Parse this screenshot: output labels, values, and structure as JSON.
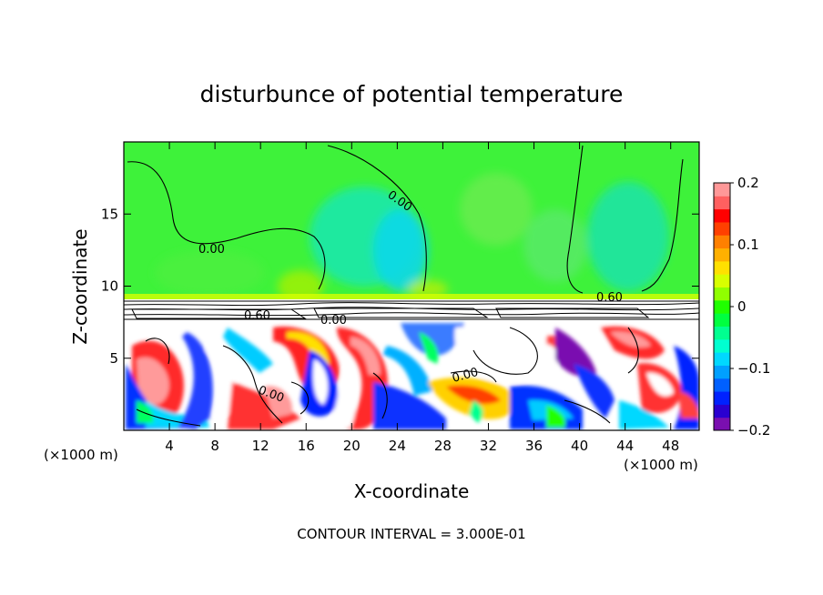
{
  "chart_data": {
    "type": "heatmap",
    "title": "disturbunce of potential temperature",
    "xlabel": "X-coordinate",
    "ylabel": "Z-coordinate",
    "x_unit_label": "(×1000 m)",
    "z_unit_label": "(×1000 m)",
    "xlim": [
      0,
      50.5
    ],
    "ylim": [
      0,
      20
    ],
    "x_ticks": [
      4,
      8,
      12,
      16,
      20,
      24,
      28,
      32,
      36,
      40,
      44,
      48
    ],
    "y_ticks": [
      5,
      10,
      15
    ],
    "colorbar": {
      "min": -0.2,
      "max": 0.2,
      "ticks": [
        "0.2",
        "0.1",
        "0",
        "−0.1",
        "−0.2"
      ],
      "colors": [
        "#7a0fb0",
        "#2a00d0",
        "#0022ff",
        "#0060ff",
        "#00a0ff",
        "#00d8ff",
        "#00ffd0",
        "#00ff90",
        "#00ff40",
        "#20ff00",
        "#90ff00",
        "#d8ff00",
        "#ffe000",
        "#ffb000",
        "#ff8000",
        "#ff4000",
        "#ff0000",
        "#ff6060",
        "#ff9898"
      ]
    },
    "contour_labels": [
      "0.00",
      "0.00",
      "0.60",
      "0.00",
      "0.00",
      "0.00",
      "0.60"
    ],
    "contour_interval_text": "CONTOUR INTERVAL = 3.000E-01"
  }
}
